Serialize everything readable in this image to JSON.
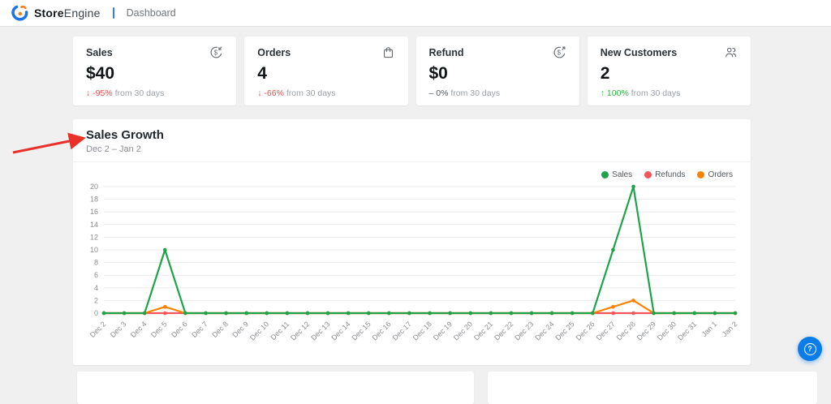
{
  "header": {
    "brand_bold": "Store",
    "brand_light": "Engine",
    "nav_current": "Dashboard"
  },
  "stats": [
    {
      "label": "Sales",
      "icon": "sales-income-icon",
      "value": "$40",
      "delta_arrow": "↓",
      "delta_pct": "-95%",
      "delta_dir": "down",
      "suffix": "from 30 days"
    },
    {
      "label": "Orders",
      "icon": "shopping-bag-icon",
      "value": "4",
      "delta_arrow": "↓",
      "delta_pct": "-66%",
      "delta_dir": "down",
      "suffix": "from 30 days"
    },
    {
      "label": "Refund",
      "icon": "refund-icon",
      "value": "$0",
      "delta_arrow": "–",
      "delta_pct": "0%",
      "delta_dir": "neutral",
      "suffix": "from 30 days"
    },
    {
      "label": "New Customers",
      "icon": "users-icon",
      "value": "2",
      "delta_arrow": "↑",
      "delta_pct": "100%",
      "delta_dir": "up",
      "suffix": "from 30 days"
    }
  ],
  "sales_growth": {
    "title": "Sales Growth",
    "subtitle": "Dec 2 – Jan 2"
  },
  "chart_data": {
    "type": "line",
    "title": "Sales Growth",
    "categories": [
      "Dec 2",
      "Dec 3",
      "Dec 4",
      "Dec 5",
      "Dec 6",
      "Dec 7",
      "Dec 8",
      "Dec 9",
      "Dec 10",
      "Dec 11",
      "Dec 12",
      "Dec 13",
      "Dec 14",
      "Dec 15",
      "Dec 16",
      "Dec 17",
      "Dec 18",
      "Dec 19",
      "Dec 20",
      "Dec 21",
      "Dec 22",
      "Dec 23",
      "Dec 24",
      "Dec 25",
      "Dec 26",
      "Dec 27",
      "Dec 28",
      "Dec 29",
      "Dec 30",
      "Dec 31",
      "Jan 1",
      "Jan 2"
    ],
    "series": [
      {
        "name": "Sales",
        "color": "#1fa34a",
        "values": [
          0,
          0,
          0,
          10,
          0,
          0,
          0,
          0,
          0,
          0,
          0,
          0,
          0,
          0,
          0,
          0,
          0,
          0,
          0,
          0,
          0,
          0,
          0,
          0,
          0,
          10,
          20,
          0,
          0,
          0,
          0,
          0
        ]
      },
      {
        "name": "Refunds",
        "color": "#f2565a",
        "values": [
          0,
          0,
          0,
          0,
          0,
          0,
          0,
          0,
          0,
          0,
          0,
          0,
          0,
          0,
          0,
          0,
          0,
          0,
          0,
          0,
          0,
          0,
          0,
          0,
          0,
          0,
          0,
          0,
          0,
          0,
          0,
          0
        ]
      },
      {
        "name": "Orders",
        "color": "#fb8200",
        "values": [
          0,
          0,
          0,
          1,
          0,
          0,
          0,
          0,
          0,
          0,
          0,
          0,
          0,
          0,
          0,
          0,
          0,
          0,
          0,
          0,
          0,
          0,
          0,
          0,
          0,
          1,
          2,
          0,
          0,
          0,
          0,
          0
        ]
      }
    ],
    "draw_order": [
      1,
      2,
      0
    ],
    "ylim": [
      0,
      20
    ],
    "ytick_step": 2,
    "grid": true,
    "legend_position": "top-right"
  },
  "help_button": {
    "glyph": "?"
  },
  "colors": {
    "topbar_separator": "#2f7cf6",
    "delta_down": "#e65054",
    "delta_up": "#2fb344",
    "help_button": "#0b7ce8",
    "annotation_arrow": "#e8312a",
    "logo_blue": "#1a73e8",
    "logo_orange": "#f5821f"
  }
}
